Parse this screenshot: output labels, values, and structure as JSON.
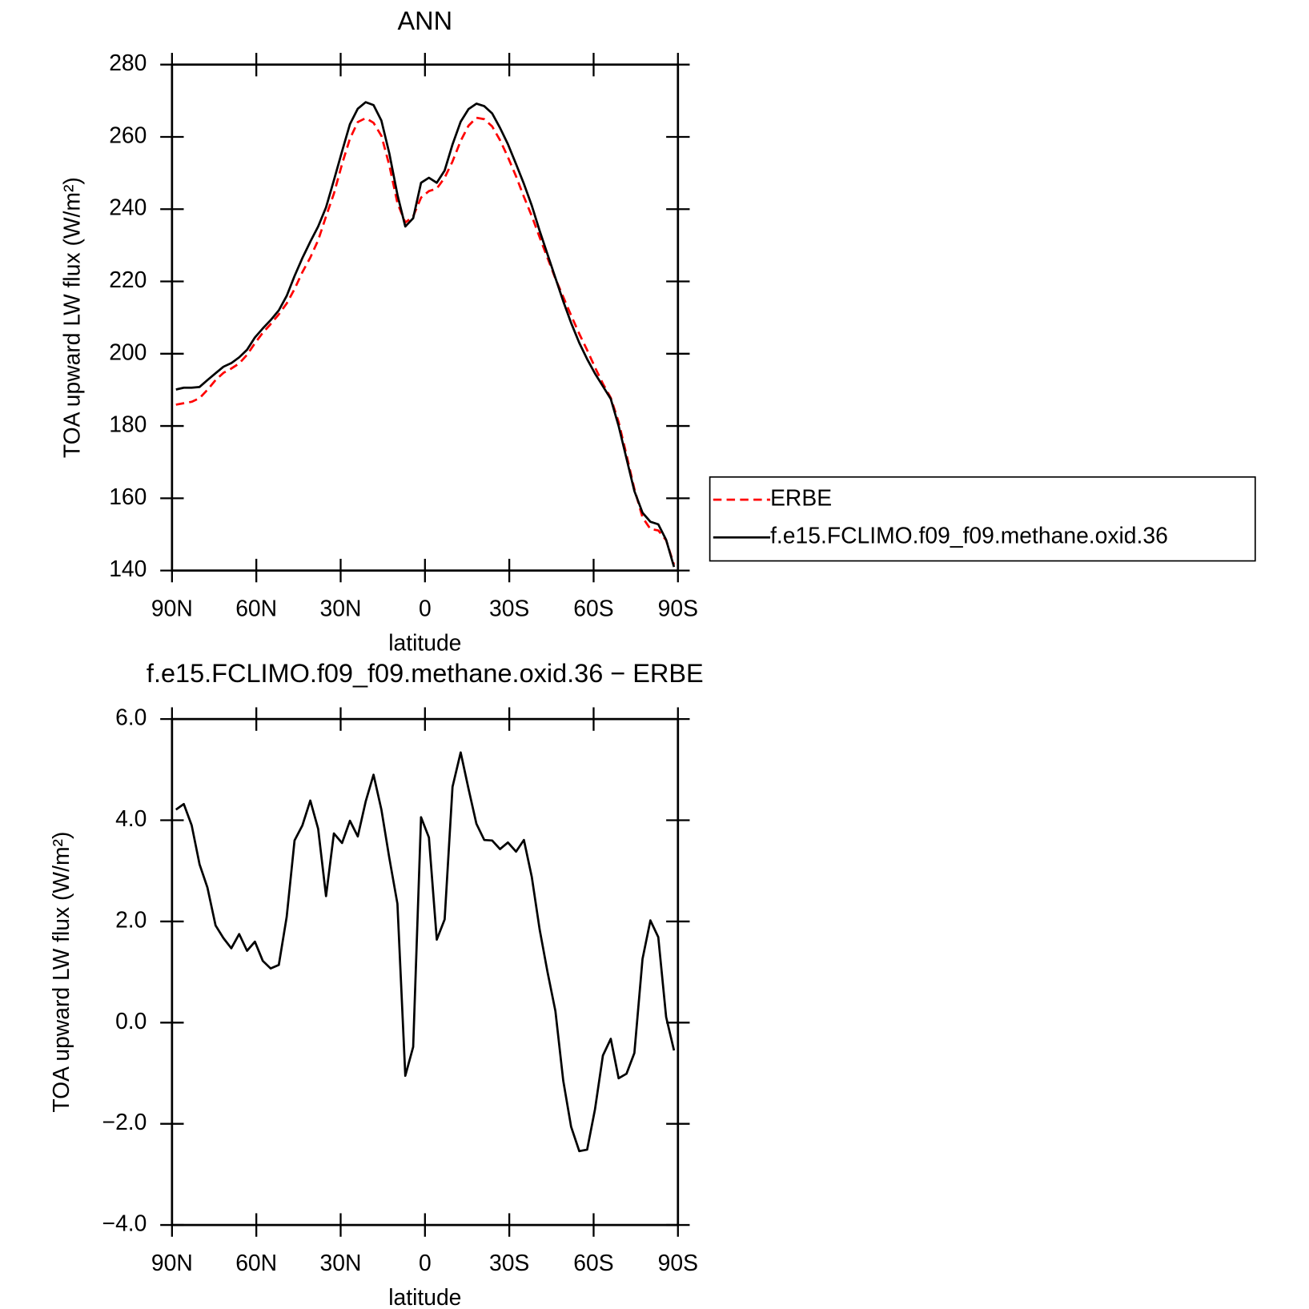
{
  "chart_data": [
    {
      "type": "line",
      "title": "ANN",
      "xlabel": "latitude",
      "ylabel": "TOA upward LW flux (W/m²)",
      "x": [
        88.6,
        85.8,
        83.0,
        80.2,
        77.4,
        74.5,
        71.7,
        68.9,
        66.1,
        63.3,
        60.5,
        57.7,
        54.9,
        52.0,
        49.2,
        46.4,
        43.6,
        40.8,
        38.0,
        35.2,
        32.4,
        29.5,
        26.7,
        23.9,
        21.1,
        18.3,
        15.5,
        12.7,
        9.8,
        7.0,
        4.2,
        1.4,
        -1.4,
        -4.2,
        -7.0,
        -9.8,
        -12.7,
        -15.5,
        -18.3,
        -21.1,
        -23.9,
        -26.7,
        -29.5,
        -32.4,
        -35.2,
        -38.0,
        -40.8,
        -43.6,
        -46.4,
        -49.2,
        -52.0,
        -54.9,
        -57.7,
        -60.5,
        -63.3,
        -66.1,
        -68.9,
        -71.7,
        -74.5,
        -77.4,
        -80.2,
        -83.0,
        -85.8,
        -88.6
      ],
      "series": [
        {
          "name": "ERBE",
          "color": "#ff0000",
          "line_style": "dashed",
          "values": [
            185.9,
            186.3,
            186.7,
            187.7,
            190.0,
            192.7,
            194.7,
            195.9,
            197.3,
            199.7,
            202.9,
            205.8,
            208.2,
            210.9,
            213.9,
            217.9,
            222.6,
            226.6,
            231.4,
            238.0,
            244.3,
            252.5,
            259.5,
            264.1,
            265.2,
            263.9,
            260.3,
            252.2,
            241.7,
            236.3,
            238.0,
            243.2,
            245.0,
            245.7,
            248.7,
            253.2,
            258.9,
            263.1,
            265.3,
            264.9,
            262.9,
            259.1,
            254.4,
            249.1,
            243.4,
            238.1,
            232.2,
            226.5,
            220.8,
            215.7,
            210.6,
            205.5,
            201.0,
            196.2,
            191.7,
            187.8,
            181.1,
            172.0,
            162.6,
            154.7,
            151.5,
            151.1,
            148.4,
            141.6
          ]
        },
        {
          "name": "f.e15.FCLIMO.f09_f09.methane.oxid.36",
          "color": "#000000",
          "line_style": "solid",
          "values": [
            190.1,
            190.6,
            190.6,
            190.8,
            192.7,
            194.6,
            196.4,
            197.4,
            199.0,
            201.1,
            204.5,
            207.0,
            209.3,
            212.0,
            216.0,
            221.5,
            226.5,
            231.0,
            235.2,
            240.5,
            248.0,
            256.0,
            263.5,
            267.8,
            269.6,
            268.8,
            264.5,
            255.5,
            244.0,
            235.2,
            237.5,
            247.3,
            248.7,
            247.3,
            250.7,
            257.9,
            264.2,
            267.7,
            269.2,
            268.5,
            266.5,
            262.5,
            258.0,
            252.5,
            247.0,
            241.0,
            234.0,
            227.5,
            221.0,
            214.5,
            208.5,
            203.0,
            198.5,
            194.5,
            191.0,
            187.5,
            180.0,
            171.0,
            162.0,
            156.0,
            153.5,
            152.8,
            148.5,
            141.0
          ]
        }
      ],
      "xlim": [
        90,
        -90
      ],
      "xticks": [
        {
          "value": 90,
          "label": "90N"
        },
        {
          "value": 60,
          "label": "60N"
        },
        {
          "value": 30,
          "label": "30N"
        },
        0,
        {
          "value": -30,
          "label": "30S"
        },
        {
          "value": -60,
          "label": "60S"
        },
        {
          "value": -90,
          "label": "90S"
        }
      ],
      "ylim": [
        140,
        280
      ],
      "yticks": [
        140,
        160,
        180,
        200,
        220,
        240,
        260,
        280
      ],
      "legend": "right",
      "grid": false
    },
    {
      "type": "line",
      "title": "f.e15.FCLIMO.f09_f09.methane.oxid.36 − ERBE",
      "xlabel": "latitude",
      "ylabel": "TOA upward LW flux (W/m²)",
      "x": [
        88.6,
        85.8,
        83.0,
        80.2,
        77.4,
        74.5,
        71.7,
        68.9,
        66.1,
        63.3,
        60.5,
        57.7,
        54.9,
        52.0,
        49.2,
        46.4,
        43.6,
        40.8,
        38.0,
        35.2,
        32.4,
        29.5,
        26.7,
        23.9,
        21.1,
        18.3,
        15.5,
        12.7,
        9.8,
        7.0,
        4.2,
        1.4,
        -1.4,
        -4.2,
        -7.0,
        -9.8,
        -12.7,
        -15.5,
        -18.3,
        -21.1,
        -23.9,
        -26.7,
        -29.5,
        -32.4,
        -35.2,
        -38.0,
        -40.8,
        -43.6,
        -46.4,
        -49.2,
        -52.0,
        -54.9,
        -57.7,
        -60.5,
        -63.3,
        -66.1,
        -68.9,
        -71.7,
        -74.5,
        -77.4,
        -80.2,
        -83.0,
        -85.8,
        -88.6
      ],
      "color": "#000000",
      "line_style": "solid",
      "values": [
        4.21,
        4.32,
        3.9,
        3.13,
        2.67,
        1.92,
        1.67,
        1.47,
        1.75,
        1.42,
        1.6,
        1.22,
        1.07,
        1.14,
        2.09,
        3.6,
        3.9,
        4.39,
        3.83,
        2.5,
        3.74,
        3.55,
        3.99,
        3.68,
        4.37,
        4.9,
        4.21,
        3.26,
        2.35,
        -1.05,
        -0.48,
        4.06,
        3.66,
        1.64,
        2.04,
        4.66,
        5.34,
        4.62,
        3.93,
        3.61,
        3.6,
        3.43,
        3.56,
        3.38,
        3.61,
        2.88,
        1.84,
        1.0,
        0.23,
        -1.15,
        -2.06,
        -2.54,
        -2.51,
        -1.71,
        -0.65,
        -0.32,
        -1.1,
        -1.01,
        -0.6,
        1.26,
        2.02,
        1.69,
        0.11,
        -0.55
      ],
      "xlim": [
        90,
        -90
      ],
      "xticks": [
        {
          "value": 90,
          "label": "90N"
        },
        {
          "value": 60,
          "label": "60N"
        },
        {
          "value": 30,
          "label": "30N"
        },
        0,
        {
          "value": -30,
          "label": "30S"
        },
        {
          "value": -60,
          "label": "60S"
        },
        {
          "value": -90,
          "label": "90S"
        }
      ],
      "ylim": [
        -4,
        6
      ],
      "yticks": [
        {
          "value": -4,
          "label": "−4.0"
        },
        {
          "value": -2,
          "label": "−2.0"
        },
        {
          "value": 0,
          "label": "0.0"
        },
        {
          "value": 2,
          "label": "2.0"
        },
        {
          "value": 4,
          "label": "4.0"
        },
        {
          "value": 6,
          "label": "6.0"
        }
      ],
      "grid": false
    }
  ]
}
